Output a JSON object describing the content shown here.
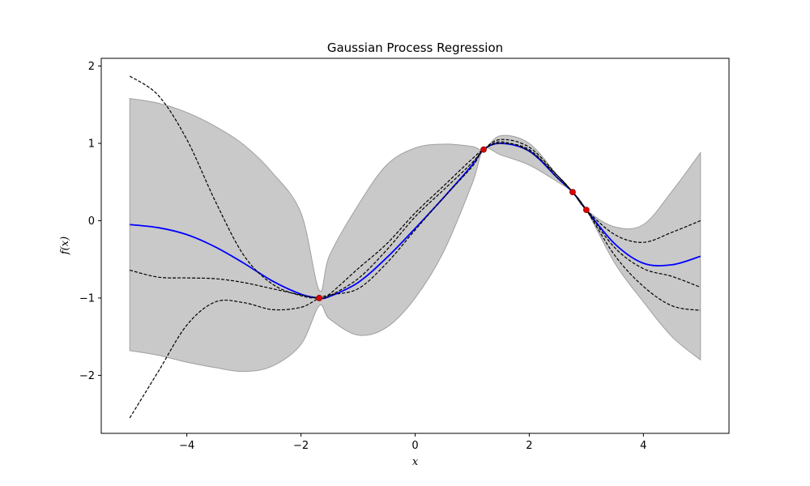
{
  "chart_data": {
    "type": "line",
    "title": "Gaussian Process Regression",
    "xlabel": "x",
    "ylabel": "f(x)",
    "xlim": [
      -5.5,
      5.5
    ],
    "ylim": [
      -2.75,
      2.1
    ],
    "xticks": [
      -4,
      -2,
      0,
      2,
      4
    ],
    "yticks": [
      -2,
      -1,
      0,
      1,
      2
    ],
    "xtick_labels": [
      "−4",
      "−2",
      "0",
      "2",
      "4"
    ],
    "ytick_labels": [
      "−2",
      "−1",
      "0",
      "1",
      "2"
    ],
    "grid": false,
    "legend": "none",
    "x": [
      -5,
      -4.5,
      -4,
      -3.5,
      -3,
      -2.5,
      -2,
      -1.68,
      -1.5,
      -1,
      -0.5,
      0,
      0.5,
      1,
      1.2,
      1.5,
      2,
      2.5,
      2.76,
      3,
      3.5,
      4,
      4.5,
      5
    ],
    "series": [
      {
        "role": "mean",
        "color": "#0000ff",
        "style": "solid",
        "values": [
          -0.05,
          -0.09,
          -0.18,
          -0.34,
          -0.55,
          -0.78,
          -0.95,
          -1.0,
          -0.98,
          -0.8,
          -0.48,
          -0.1,
          0.3,
          0.72,
          0.92,
          1.0,
          0.9,
          0.55,
          0.37,
          0.14,
          -0.3,
          -0.55,
          -0.57,
          -0.46
        ]
      },
      {
        "role": "sample",
        "color": "#000000",
        "style": "dashed",
        "values": [
          1.87,
          1.62,
          1.05,
          0.25,
          -0.45,
          -0.82,
          -0.97,
          -1.0,
          -0.95,
          -0.62,
          -0.3,
          0.1,
          0.45,
          0.8,
          0.92,
          1.02,
          0.9,
          0.58,
          0.37,
          0.14,
          -0.18,
          -0.28,
          -0.15,
          0.0
        ]
      },
      {
        "role": "sample",
        "color": "#000000",
        "style": "dashed",
        "values": [
          -0.64,
          -0.73,
          -0.74,
          -0.75,
          -0.8,
          -0.88,
          -0.96,
          -1.0,
          -0.97,
          -0.75,
          -0.38,
          0.05,
          0.4,
          0.75,
          0.92,
          1.05,
          0.95,
          0.58,
          0.37,
          0.14,
          -0.35,
          -0.62,
          -0.72,
          -0.86
        ]
      },
      {
        "role": "sample",
        "color": "#000000",
        "style": "dashed",
        "values": [
          -2.55,
          -1.95,
          -1.35,
          -1.05,
          -1.06,
          -1.15,
          -1.12,
          -1.0,
          -0.96,
          -0.88,
          -0.55,
          -0.12,
          0.3,
          0.7,
          0.92,
          1.0,
          0.92,
          0.55,
          0.37,
          0.14,
          -0.45,
          -0.85,
          -1.1,
          -1.16
        ]
      }
    ],
    "confidence_band": {
      "color": "#c0c0c0",
      "upper": [
        1.58,
        1.52,
        1.4,
        1.22,
        0.98,
        0.62,
        0.1,
        -0.9,
        -0.45,
        0.2,
        0.72,
        0.94,
        0.99,
        0.96,
        0.92,
        1.1,
        1.0,
        0.58,
        0.37,
        0.14,
        -0.08,
        -0.05,
        0.38,
        0.88
      ],
      "lower": [
        -1.68,
        -1.74,
        -1.83,
        -1.9,
        -1.95,
        -1.88,
        -1.6,
        -1.1,
        -1.27,
        -1.48,
        -1.38,
        -1.0,
        -0.4,
        0.48,
        0.92,
        0.85,
        0.72,
        0.5,
        0.37,
        0.14,
        -0.55,
        -1.05,
        -1.5,
        -1.8
      ]
    },
    "observations": {
      "color": "#dd0000",
      "x": [
        -1.68,
        1.2,
        2.76,
        3.0
      ],
      "y": [
        -1.0,
        0.92,
        0.37,
        0.14
      ]
    }
  }
}
